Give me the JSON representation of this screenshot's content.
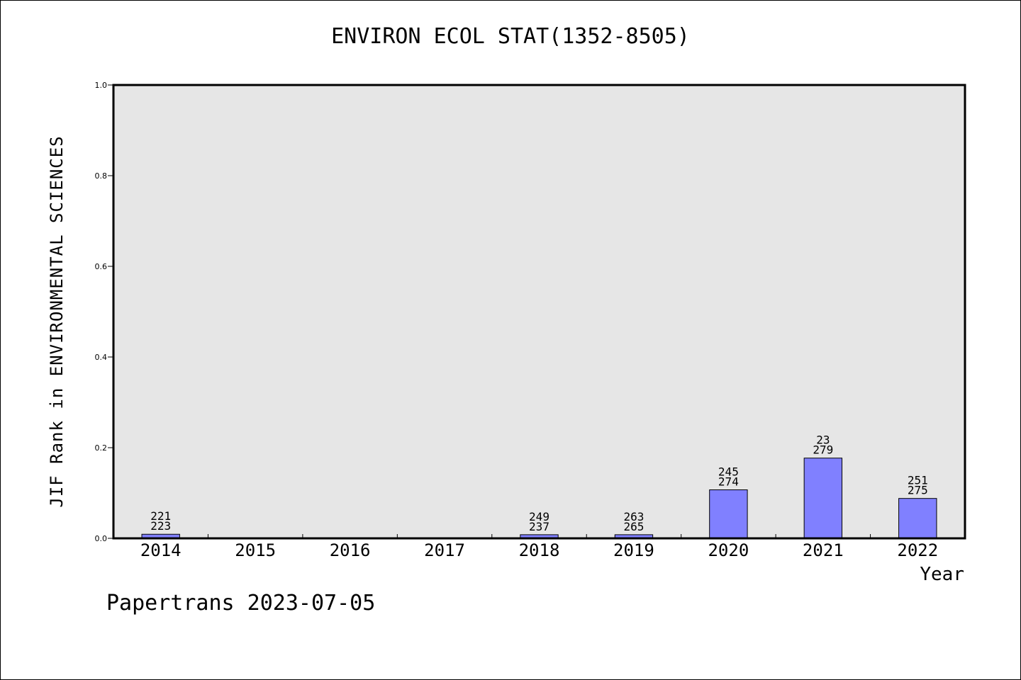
{
  "chart_data": {
    "type": "bar",
    "title": "ENVIRON ECOL STAT(1352-8505)",
    "xlabel": "Year",
    "ylabel": "JIF Rank in ENVIRONMENTAL SCIENCES",
    "ylim": [
      0,
      1.0
    ],
    "yticks": [
      "0.0",
      "0.2",
      "0.4",
      "0.6",
      "0.8",
      "1.0"
    ],
    "categories": [
      "2014",
      "2015",
      "2016",
      "2017",
      "2018",
      "2019",
      "2020",
      "2021",
      "2022"
    ],
    "values": [
      0.009,
      null,
      null,
      null,
      0.008,
      0.008,
      0.107,
      0.177,
      0.088
    ],
    "labels_top": [
      "221",
      "",
      "",
      "",
      "249",
      "263",
      "245",
      "23",
      "251"
    ],
    "labels_bottom": [
      "223",
      "",
      "",
      "",
      "237",
      "265",
      "274",
      "279",
      "275"
    ],
    "colors": {
      "bar": "#8080ff",
      "plot_bg": "#e6e6e6"
    }
  },
  "watermark": "Papertrans 2023-07-05"
}
